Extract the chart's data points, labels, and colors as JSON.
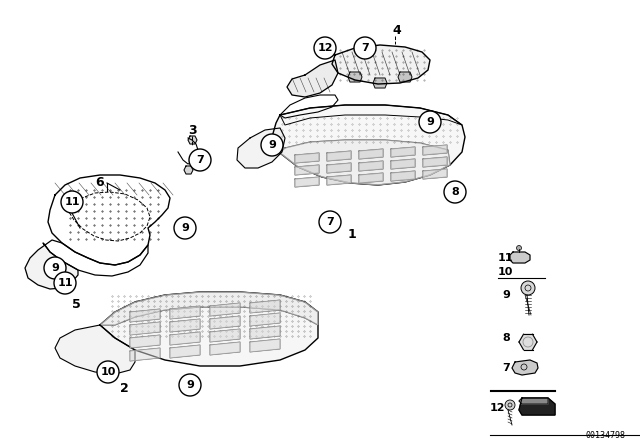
{
  "part_number": "00134798",
  "background_color": "#ffffff",
  "line_color": "#000000",
  "figure_width": 6.4,
  "figure_height": 4.48,
  "dpi": 100,
  "border_color": "#000000"
}
